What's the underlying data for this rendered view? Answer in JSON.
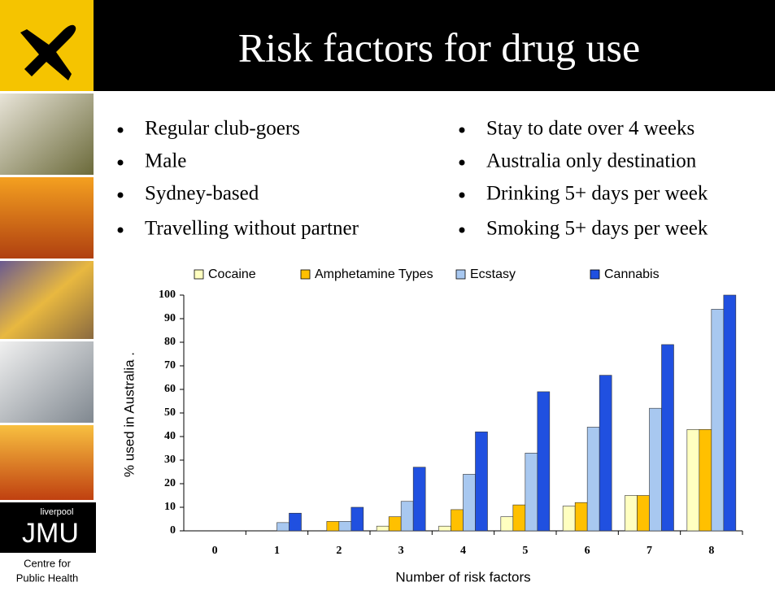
{
  "slide": {
    "title": "Risk factors for drug use",
    "bullets_left": [
      "Regular club-goers",
      "Male",
      "Sydney-based",
      "Travelling without partner"
    ],
    "bullets_right": [
      "Stay to date over 4 weeks",
      "Australia only destination",
      "Drinking 5+ days per week",
      "Smoking 5+ days per week"
    ],
    "logo": {
      "small": "liverpool",
      "big": "JMU",
      "line1": "Centre for",
      "line2": "Public Health"
    }
  },
  "chart_data": {
    "type": "bar",
    "x_label": "Number of risk factors",
    "y_label": "% used in Australia .",
    "categories": [
      "0",
      "1",
      "2",
      "3",
      "4",
      "5",
      "6",
      "7",
      "8"
    ],
    "series": [
      {
        "name": "Cocaine",
        "color": "#ffffc0",
        "values": [
          0,
          0,
          0,
          2,
          2,
          6,
          10.5,
          15,
          43
        ]
      },
      {
        "name": "Amphetamine Types",
        "color": "#ffc000",
        "values": [
          0,
          0,
          4,
          6,
          9,
          11,
          12,
          15,
          43
        ]
      },
      {
        "name": "Ecstasy",
        "color": "#a8c8f0",
        "values": [
          0,
          3.5,
          4,
          12.5,
          24,
          33,
          44,
          52,
          94
        ]
      },
      {
        "name": "Cannabis",
        "color": "#2050e0",
        "values": [
          0,
          7.5,
          10,
          27,
          42,
          59,
          66,
          79,
          100
        ]
      }
    ],
    "ylim": [
      0,
      100
    ],
    "yticks": [
      0,
      10,
      20,
      30,
      40,
      50,
      60,
      70,
      80,
      90,
      100
    ]
  }
}
